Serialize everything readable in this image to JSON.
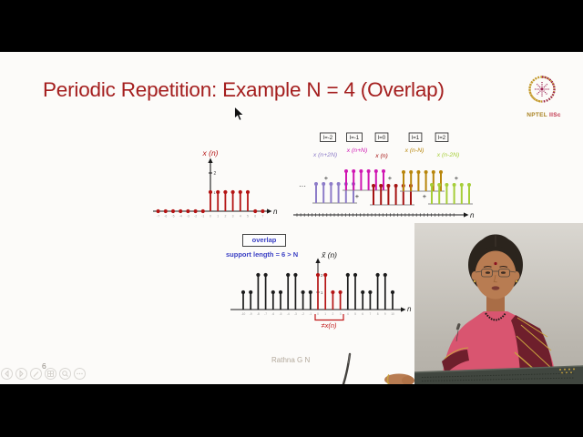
{
  "frame": {
    "page_number": "6",
    "author_footer": "Rathna G N"
  },
  "slide": {
    "title": "Periodic Repetition: Example N = 4 (Overlap)",
    "title_color": "#a41e1e"
  },
  "logo": {
    "org": "NPTEL",
    "org2": "IISc",
    "gold": "#a8801f",
    "maroon": "#9b2152"
  },
  "presenter_toolbar": {
    "icons": [
      "previous-slide",
      "next-slide",
      "pen",
      "slide-grid",
      "magnifier",
      "more-options"
    ]
  },
  "chart_data": [
    {
      "type": "stem",
      "title": "x (n)",
      "xlabel": "n",
      "stem_color": "#b41414",
      "x": [
        -7,
        -6,
        -5,
        -4,
        -3,
        -2,
        -1,
        0,
        1,
        2,
        3,
        4,
        5,
        6,
        7
      ],
      "values": [
        0,
        0,
        0,
        0,
        0,
        0,
        0,
        1,
        1,
        1,
        1,
        1,
        1,
        0,
        0
      ],
      "ytick_labels": [
        "1",
        "2"
      ],
      "ylim": [
        0,
        2.5
      ]
    },
    {
      "type": "stem-multi",
      "description": "overlapping shifted copies x(n-lN), N = 4",
      "xlabel": "n",
      "ellipsis": "···",
      "plus": "+",
      "series": [
        {
          "index_label": "l=-2",
          "name": "x (n+2N)",
          "color": "#8d7cc8",
          "values": [
            1,
            1,
            1,
            1,
            1,
            1
          ]
        },
        {
          "index_label": "l=-1",
          "name": "x (n+N)",
          "color": "#cf16b2",
          "values": [
            1,
            1,
            1,
            1,
            1,
            1
          ]
        },
        {
          "index_label": "l=0",
          "name": "x (n)",
          "color": "#a51312",
          "values": [
            1,
            1,
            1,
            1,
            1,
            1
          ]
        },
        {
          "index_label": "l=1",
          "name": "x (n-N)",
          "color": "#b8860b",
          "values": [
            1,
            1,
            1,
            1,
            1,
            1
          ]
        },
        {
          "index_label": "l=2",
          "name": "x (n-2N)",
          "color": "#a6ce39",
          "values": [
            1,
            1,
            1,
            1,
            1,
            1
          ]
        }
      ]
    },
    {
      "type": "stem",
      "title": "x̃ (n)",
      "xlabel": "n",
      "annotations": {
        "overlap_label": "overlap",
        "support_label": "support length = 6 > N",
        "mismatch_label": "≠x(n)",
        "label_color": "#3a3fc4",
        "mismatch_color": "#c01818"
      },
      "x_start": -10,
      "values": [
        1,
        1,
        2,
        2,
        1,
        1,
        2,
        2,
        1,
        1,
        2,
        2,
        1,
        1,
        2,
        2,
        1,
        1,
        2,
        2,
        1
      ],
      "highlight_n": [
        0,
        1,
        2,
        3
      ],
      "highlight_color": "#b41414",
      "stem_color": "#1c1c1c",
      "ytick_labels": [
        "1",
        "2"
      ]
    }
  ]
}
